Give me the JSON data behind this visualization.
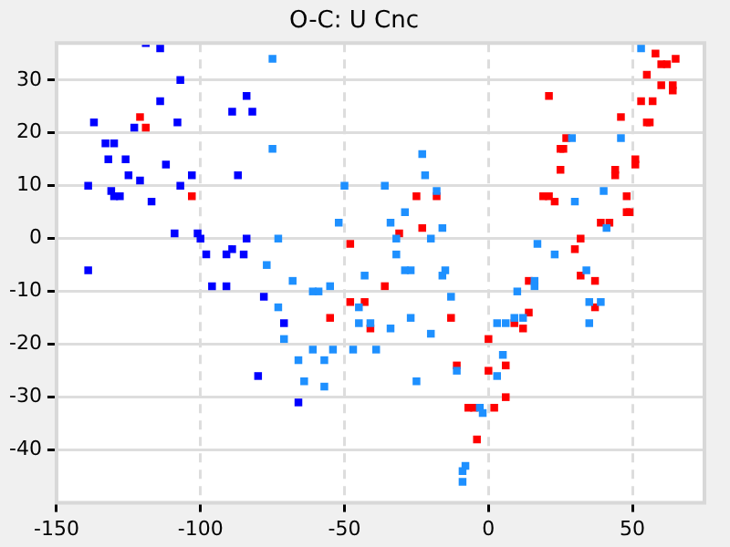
{
  "chart_data": {
    "type": "scatter",
    "title": "O-C: U Cnc",
    "xlim": [
      -150,
      75
    ],
    "xticks": [
      -150,
      -100,
      -50,
      0,
      50
    ],
    "ylim": [
      -50,
      37
    ],
    "yticks": [
      -40,
      -30,
      -20,
      -10,
      0,
      10,
      20,
      30
    ],
    "grid": true,
    "legend": false,
    "marker": "square",
    "series": [
      {
        "color": "#0000ff",
        "x": [
          -119,
          -114,
          -107,
          -114,
          -84,
          -89,
          -82,
          -137,
          -123,
          -108,
          -133,
          -130,
          -132,
          -126,
          -112,
          -125,
          -121,
          -103,
          -87,
          -139,
          -107,
          -131,
          -128,
          -130,
          -117,
          -109,
          -101,
          -100,
          -98,
          -91,
          -89,
          -85,
          -84,
          -139,
          -96,
          -91,
          -78,
          -71,
          -80,
          -66
        ],
        "values": [
          37,
          36,
          30,
          26,
          27,
          24,
          24,
          22,
          21,
          22,
          18,
          18,
          15,
          15,
          14,
          12,
          11,
          12,
          12,
          10,
          10,
          9,
          8,
          8,
          7,
          1,
          1,
          0,
          -3,
          -3,
          -2,
          -3,
          0,
          -6,
          -9,
          -9,
          -11,
          -16,
          -26,
          -31
        ]
      },
      {
        "color": "#1e90ff",
        "x": [
          -75,
          -75,
          -73,
          -77,
          -73,
          -71,
          -23,
          -22,
          -50,
          -36,
          -18,
          -29,
          -52,
          -34,
          -16,
          -32,
          -20,
          -32,
          -29,
          -27,
          -15,
          -16,
          -43,
          -68,
          -55,
          -61,
          -59,
          -13,
          -45,
          -45,
          -41,
          -34,
          -27,
          -20,
          -54,
          -61,
          -47,
          -39,
          -57,
          -66,
          -25,
          -64,
          -57,
          5,
          3,
          6,
          -11,
          3,
          -3,
          -2,
          -8,
          -9,
          -9,
          53,
          29,
          46,
          40,
          30,
          41,
          17,
          23,
          34,
          16,
          16,
          10,
          35,
          39,
          12,
          9,
          35
        ],
        "values": [
          34,
          17,
          0,
          -5,
          -13,
          -19,
          16,
          12,
          10,
          10,
          9,
          5,
          3,
          3,
          2,
          0,
          0,
          -3,
          -6,
          -6,
          -6,
          -7,
          -7,
          -8,
          -9,
          -10,
          -10,
          -11,
          -13,
          -16,
          -16,
          -17,
          -15,
          -18,
          -21,
          -21,
          -21,
          -21,
          -23,
          -23,
          -27,
          -27,
          -28,
          -22,
          -16,
          -16,
          -25,
          -26,
          -32,
          -33,
          -43,
          -44,
          -46,
          36,
          19,
          19,
          9,
          7,
          2,
          -1,
          -3,
          -6,
          -8,
          -9,
          -10,
          -12,
          -12,
          -15,
          -15,
          -16
        ]
      },
      {
        "color": "#ff0000",
        "x": [
          -121,
          -119,
          -103,
          -25,
          -18,
          -23,
          -31,
          -48,
          -36,
          -48,
          -43,
          -55,
          -41,
          -13,
          0,
          -11,
          0,
          6,
          -7,
          -5,
          2,
          6,
          -4,
          58,
          65,
          60,
          62,
          55,
          60,
          64,
          64,
          57,
          53,
          21,
          46,
          55,
          56,
          27,
          25,
          26,
          51,
          51,
          44,
          44,
          25,
          19,
          21,
          23,
          48,
          48,
          49,
          42,
          39,
          32,
          30,
          32,
          14,
          37,
          37,
          14,
          9,
          12
        ],
        "values": [
          23,
          21,
          8,
          8,
          8,
          2,
          1,
          -1,
          -9,
          -12,
          -12,
          -15,
          -17,
          -15,
          -19,
          -24,
          -25,
          -24,
          -32,
          -32,
          -32,
          -30,
          -38,
          35,
          34,
          33,
          33,
          31,
          29,
          29,
          28,
          26,
          26,
          27,
          23,
          22,
          22,
          19,
          17,
          17,
          15,
          14,
          13,
          12,
          13,
          8,
          8,
          7,
          8,
          5,
          5,
          3,
          3,
          0,
          -2,
          -7,
          -8,
          -8,
          -13,
          -14,
          -16,
          -17
        ]
      }
    ]
  }
}
